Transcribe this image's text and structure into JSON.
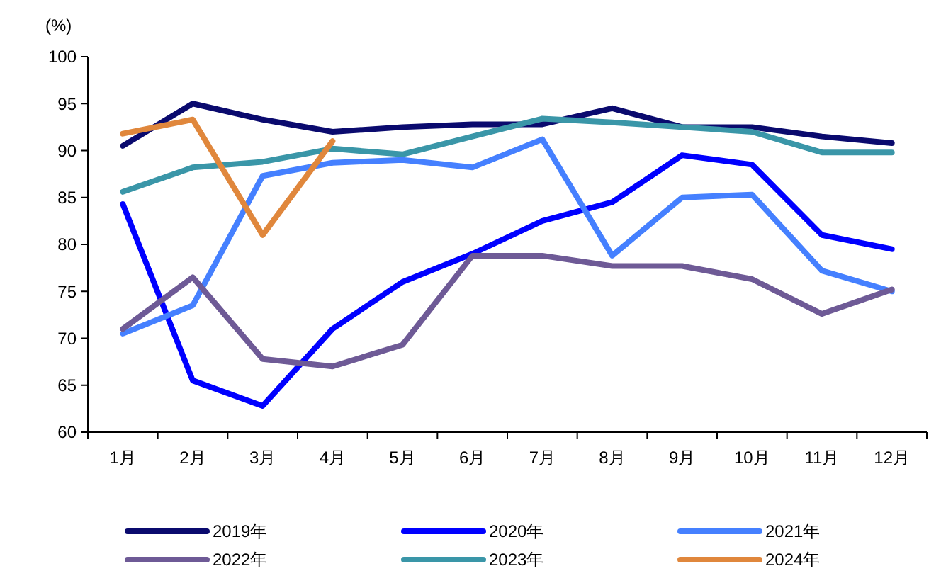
{
  "chart_data": {
    "type": "line",
    "ylabel": "(%)",
    "categories": [
      "1月",
      "2月",
      "3月",
      "4月",
      "5月",
      "6月",
      "7月",
      "8月",
      "9月",
      "10月",
      "11月",
      "12月"
    ],
    "ylim": [
      60,
      100
    ],
    "yticks": [
      60,
      65,
      70,
      75,
      80,
      85,
      90,
      95,
      100
    ],
    "grid": false,
    "legend": "bottom",
    "marker": "none",
    "line_style": "solid",
    "series": [
      {
        "name": "2019年",
        "color": "#0a0a6e",
        "values": [
          90.5,
          95,
          93.3,
          92,
          92.5,
          92.8,
          92.8,
          94.5,
          92.5,
          92.5,
          91.5,
          90.8
        ]
      },
      {
        "name": "2020年",
        "color": "#0000ff",
        "values": [
          84.3,
          65.5,
          62.8,
          71,
          76,
          79,
          82.5,
          84.5,
          89.5,
          88.5,
          81,
          79.5
        ]
      },
      {
        "name": "2021年",
        "color": "#4580ff",
        "values": [
          70.5,
          73.5,
          87.3,
          88.7,
          89,
          88.2,
          91.2,
          78.8,
          85,
          85.3,
          77.2,
          75
        ]
      },
      {
        "name": "2022年",
        "color": "#6e5a96",
        "values": [
          71,
          76.5,
          67.8,
          67,
          69.3,
          78.8,
          78.8,
          77.7,
          77.7,
          76.3,
          72.6,
          75.2
        ]
      },
      {
        "name": "2023年",
        "color": "#3a96a8",
        "values": [
          85.6,
          88.2,
          88.8,
          90.2,
          89.6,
          91.5,
          93.4,
          93,
          92.5,
          92,
          89.8,
          89.8
        ]
      },
      {
        "name": "2024年",
        "color": "#e0873c",
        "values": [
          91.8,
          93.3,
          81,
          91,
          null,
          null,
          null,
          null,
          null,
          null,
          null,
          null
        ]
      }
    ]
  }
}
